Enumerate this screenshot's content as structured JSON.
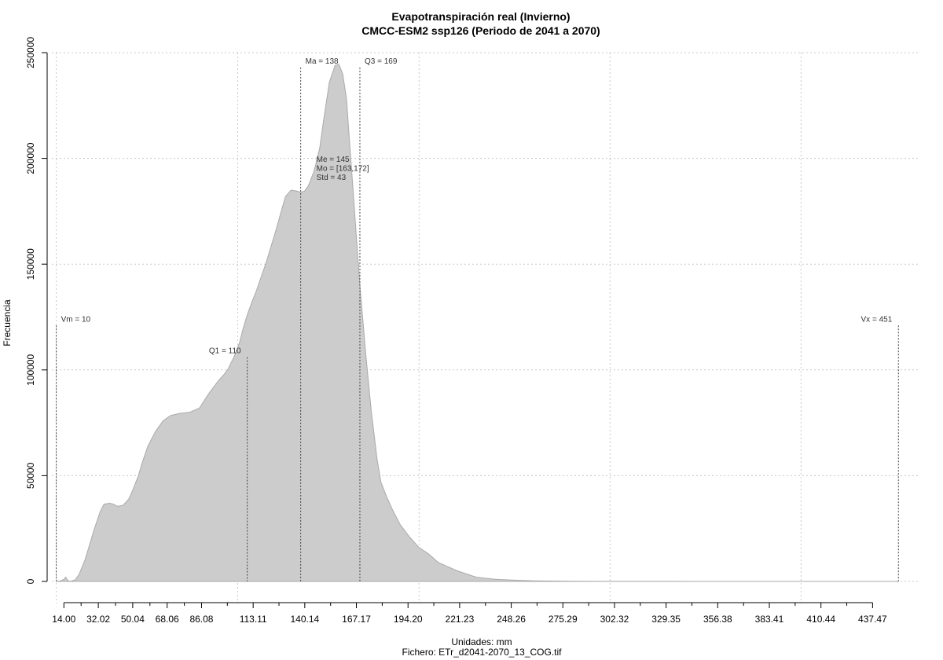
{
  "chart_data": {
    "type": "area",
    "title": "Evapotranspiración real (Invierno)",
    "subtitle": "CMCC-ESM2 ssp126 (Periodo de 2041 a 2070)",
    "xlabel": "Unidades: mm",
    "caption": "Fichero: ETr_d2041-2070_13_COG.tif",
    "ylabel": "Frecuencia",
    "xlim": [
      7.7,
      462.0
    ],
    "ylim": [
      0,
      250000
    ],
    "x_ticks": [
      14.0,
      32.02,
      50.04,
      68.06,
      86.08,
      113.11,
      140.14,
      167.17,
      194.2,
      221.23,
      248.26,
      275.29,
      302.32,
      329.35,
      356.38,
      383.41,
      410.44,
      437.47
    ],
    "x_tick_labels": [
      "14.00",
      "32.02",
      "50.04",
      "68.06",
      "86.08",
      "113.11",
      "140.14",
      "167.17",
      "194.20",
      "221.23",
      "248.26",
      "275.29",
      "302.32",
      "329.35",
      "356.38",
      "383.41",
      "410.44",
      "437.47"
    ],
    "y_ticks": [
      0,
      50000,
      100000,
      150000,
      200000,
      250000
    ],
    "y_tick_labels": [
      "0",
      "50000",
      "100000",
      "150000",
      "200000",
      "250000"
    ],
    "x_grid": [
      10,
      105,
      200,
      300,
      400
    ],
    "y_grid": [
      0,
      50000,
      100000,
      150000,
      200000,
      250000
    ],
    "grid": true,
    "fill_color": "#cccccc",
    "stroke_color": "#aaaaaa",
    "series": [
      {
        "x": [
          10,
          12,
          14,
          15,
          16,
          17,
          18,
          20,
          22,
          25,
          27,
          30,
          33,
          35,
          38,
          40,
          42,
          45,
          48,
          50,
          53,
          55,
          58,
          62,
          66,
          70,
          75,
          80,
          85,
          90,
          95,
          98,
          100,
          103,
          106,
          108,
          110,
          112,
          115,
          120,
          125,
          130,
          133,
          136,
          138,
          140,
          142,
          145,
          148,
          150,
          153,
          156,
          158,
          160,
          162,
          163,
          165,
          167,
          169,
          172,
          175,
          178,
          180,
          183,
          186,
          190,
          195,
          200,
          205,
          210,
          215,
          220,
          225,
          230,
          235,
          240,
          250,
          260,
          270,
          280,
          300,
          330,
          360,
          400,
          440,
          451
        ],
        "y": [
          0,
          200,
          1000,
          2000,
          500,
          100,
          200,
          800,
          3500,
          10000,
          16000,
          25000,
          33000,
          36500,
          37000,
          36500,
          35500,
          36000,
          39000,
          43000,
          50000,
          56000,
          64000,
          71000,
          76000,
          78500,
          79500,
          80000,
          82000,
          89000,
          95000,
          98000,
          100500,
          106000,
          113000,
          120000,
          126000,
          131000,
          138000,
          151000,
          166000,
          182000,
          185000,
          184500,
          184000,
          184500,
          187000,
          194000,
          205000,
          218000,
          236000,
          244000,
          244500,
          240000,
          228000,
          215000,
          190000,
          165000,
          140000,
          108000,
          80000,
          58000,
          47000,
          40000,
          34000,
          27000,
          21000,
          16000,
          13000,
          9000,
          7000,
          5000,
          3500,
          2000,
          1500,
          1000,
          600,
          300,
          200,
          100,
          50,
          20,
          10,
          5,
          2,
          0
        ]
      }
    ],
    "stat_lines": [
      {
        "x": 10,
        "y_top": 121000,
        "label": "Vm = 10",
        "anchor": "start"
      },
      {
        "x": 110,
        "y_top": 106000,
        "label": "Q1 = 110",
        "anchor": "end"
      },
      {
        "x": 138,
        "y_top": 243000,
        "label": "Ma = 138",
        "anchor": "start"
      },
      {
        "x": 169,
        "y_top": 243000,
        "label": "Q3 = 169",
        "anchor": "start"
      },
      {
        "x": 451,
        "y_top": 121000,
        "label": "Vx = 451",
        "anchor": "end"
      }
    ],
    "stats_box": [
      "Me = 145",
      "Mo = [163,172]",
      "Std = 43"
    ]
  }
}
